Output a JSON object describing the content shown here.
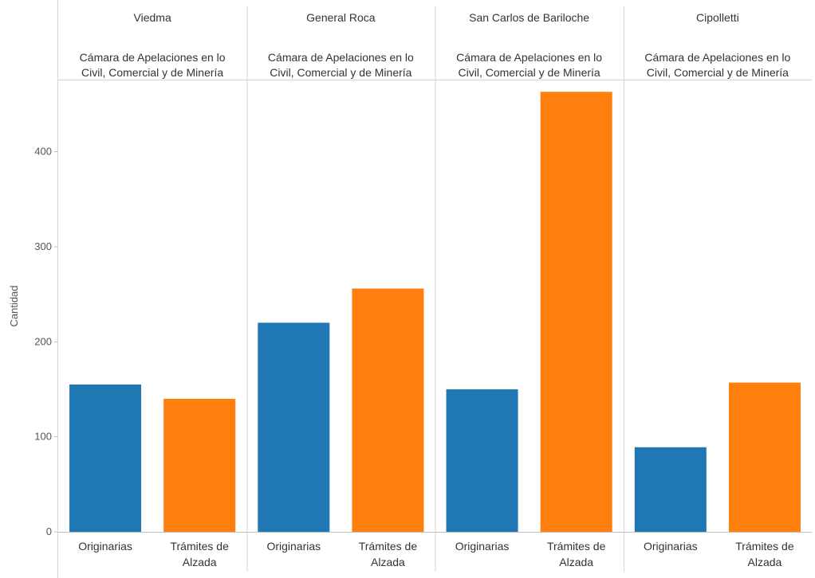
{
  "chart_data": {
    "type": "bar",
    "ylabel": "Cantidad",
    "ylim": [
      0,
      475
    ],
    "yticks": [
      0,
      100,
      200,
      300,
      400
    ],
    "grid": false,
    "legend": "none",
    "categories": [
      "Originarias",
      "Trámites de Alzada"
    ],
    "category_lines": [
      [
        "Originarias"
      ],
      [
        "Trámites de",
        "Alzada"
      ]
    ],
    "colors": [
      "#1f77b4",
      "#ff7f0e"
    ],
    "panels": [
      {
        "header": "Viedma",
        "subheader_lines": [
          "Cámara de Apelaciones en lo",
          "Civil, Comercial y de Minería"
        ],
        "values": [
          155,
          140
        ]
      },
      {
        "header": "General Roca",
        "subheader_lines": [
          "Cámara de Apelaciones en lo",
          "Civil, Comercial y de Minería"
        ],
        "values": [
          220,
          256
        ]
      },
      {
        "header": "San Carlos de Bariloche",
        "subheader_lines": [
          "Cámara de Apelaciones en lo",
          "Civil, Comercial y de Minería"
        ],
        "values": [
          150,
          463
        ]
      },
      {
        "header": "Cipolletti",
        "subheader_lines": [
          "Cámara de Apelaciones en lo",
          "Civil, Comercial y de Minería"
        ],
        "values": [
          89,
          157
        ]
      }
    ]
  }
}
